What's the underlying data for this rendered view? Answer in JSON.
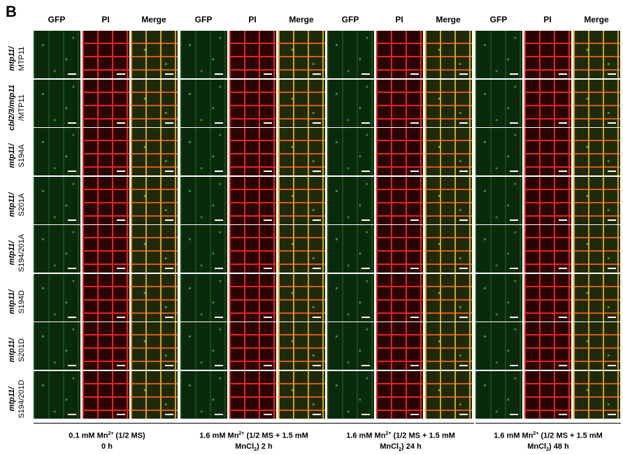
{
  "panel_letter": "B",
  "channel_headers": [
    "GFP",
    "PI",
    "Merge"
  ],
  "row_labels": [
    [
      "mtp11/",
      "MTP11"
    ],
    [
      "cbl2/3/mtp11",
      "/MTP11"
    ],
    [
      "mtp11/",
      "S194A"
    ],
    [
      "mtp11/",
      "S201A"
    ],
    [
      "mtp11/",
      "S194/201A"
    ],
    [
      "mtp11/",
      "S194D"
    ],
    [
      "mtp11/",
      "S201D"
    ],
    [
      "mtp11/",
      "S194/201D"
    ]
  ],
  "conditions": [
    {
      "line1a": "0.1 mM Mn",
      "sup": "2+",
      "line1b": " (1/2 MS)",
      "line2a": "0 h",
      "sub": "",
      "line2b": ""
    },
    {
      "line1a": "1.6 mM Mn",
      "sup": "2+",
      "line1b": " (1/2 MS + 1.5 mM",
      "line2a": "MnCl",
      "sub": "2",
      "line2b": ") 2 h"
    },
    {
      "line1a": "1.6 mM Mn",
      "sup": "2+",
      "line1b": " (1/2 MS + 1.5 mM",
      "line2a": "MnCl",
      "sub": "2",
      "line2b": ") 24 h"
    },
    {
      "line1a": "1.6 mM Mn",
      "sup": "2+",
      "line1b": " (1/2 MS + 1.5 mM",
      "line2a": "MnCl",
      "sub": "2",
      "line2b": ") 48 h"
    }
  ],
  "colors": {
    "gfp": "#0a2a0c",
    "pi": "#e82222",
    "merge": "#d8a41a"
  }
}
